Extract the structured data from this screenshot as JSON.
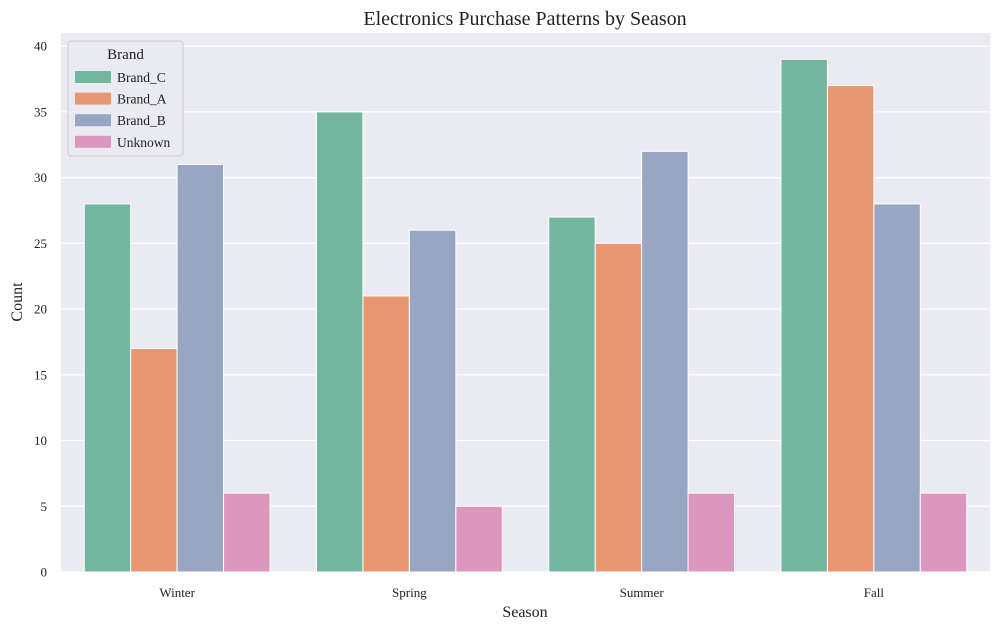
{
  "chart_data": {
    "type": "bar",
    "title": "Electronics Purchase Patterns by Season",
    "xlabel": "Season",
    "ylabel": "Count",
    "categories": [
      "Winter",
      "Spring",
      "Summer",
      "Fall"
    ],
    "ylim": [
      0,
      41
    ],
    "yticks": [
      0,
      5,
      10,
      15,
      20,
      25,
      30,
      35,
      40
    ],
    "grid": true,
    "legend": {
      "title": "Brand",
      "placement": "top-left"
    },
    "series": [
      {
        "name": "Brand_C",
        "color": "#73b6a0",
        "values": [
          28,
          35,
          27,
          39
        ]
      },
      {
        "name": "Brand_A",
        "color": "#e99772",
        "values": [
          17,
          21,
          25,
          37
        ]
      },
      {
        "name": "Brand_B",
        "color": "#96a6c3",
        "values": [
          31,
          26,
          32,
          28
        ]
      },
      {
        "name": "Unknown",
        "color": "#dc97be",
        "values": [
          6,
          5,
          6,
          6
        ]
      }
    ],
    "colors": {
      "plot_background": "#eaeaf2",
      "grid": "#ffffff"
    }
  }
}
